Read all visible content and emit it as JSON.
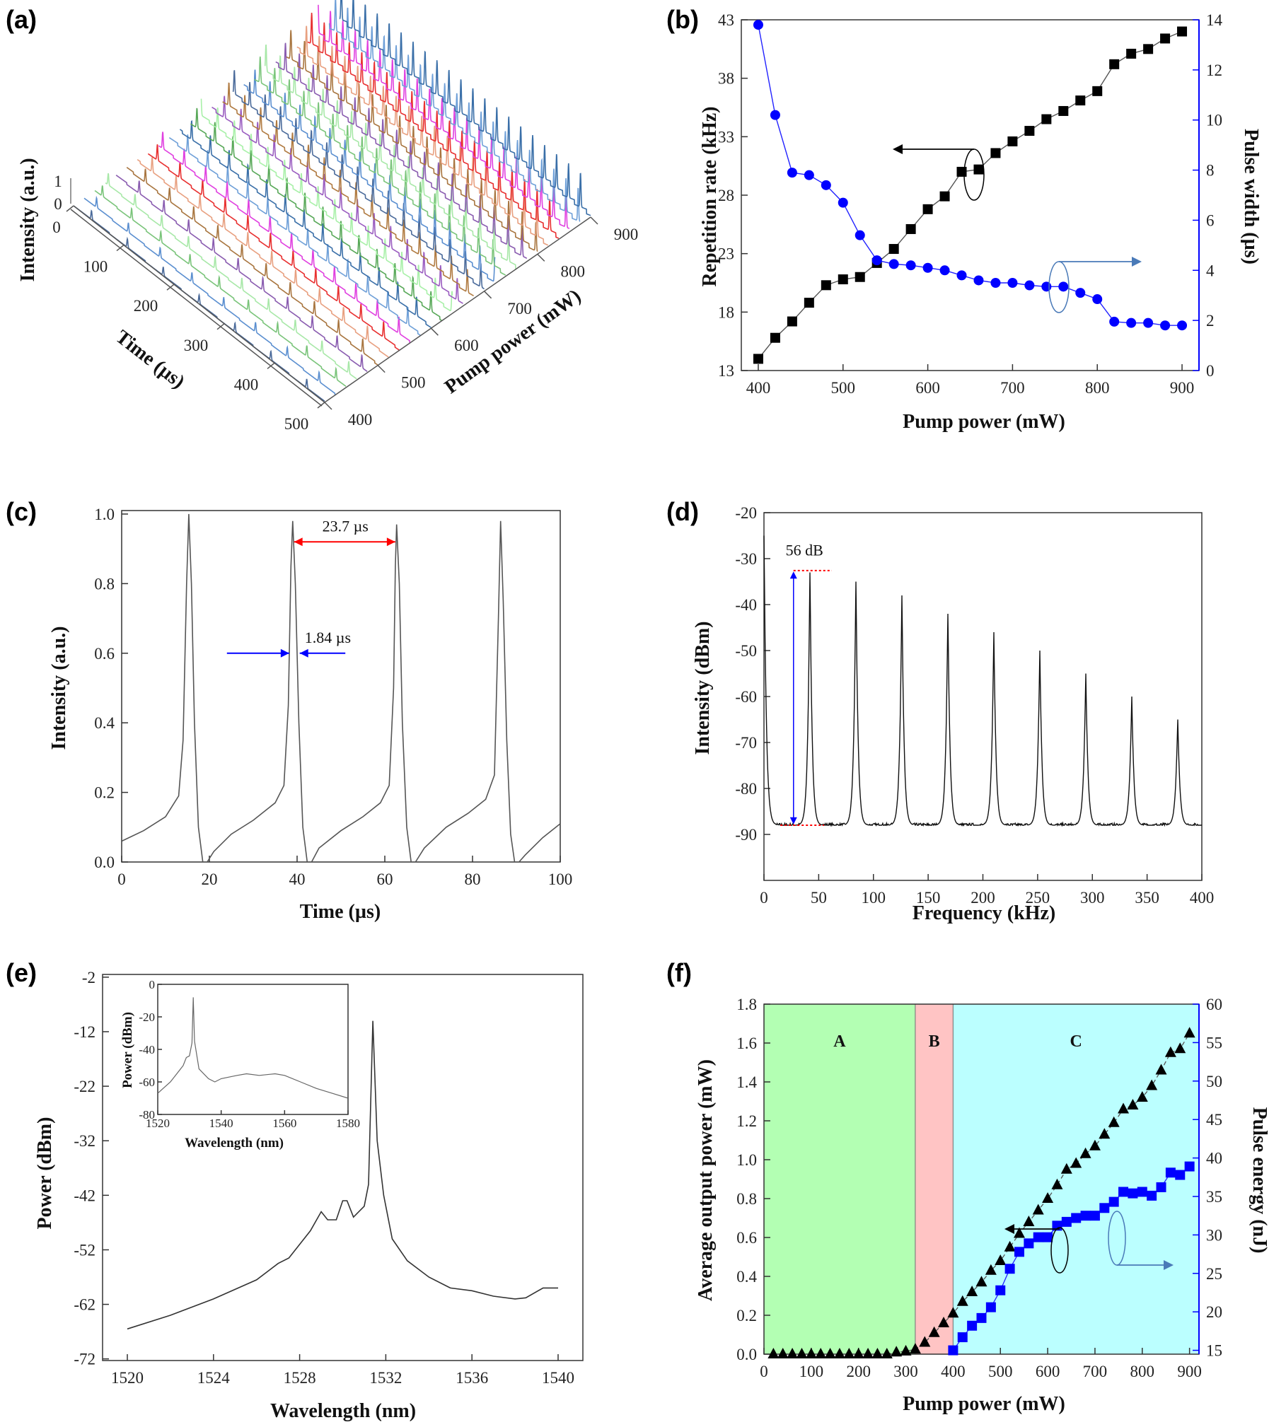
{
  "figure": {
    "panel_labels": [
      "(a)",
      "(b)",
      "(c)",
      "(d)",
      "(e)",
      "(f)"
    ]
  },
  "chart_data": [
    {
      "panel": "(a)",
      "type": "line",
      "style": "3d-waterfall",
      "xlabel": "Time (µs)",
      "ylabel": "Pump power (mW)",
      "zlabel": "Intensity (a.u.)",
      "xlim": [
        0,
        500
      ],
      "ylim": [
        400,
        900
      ],
      "zlim": [
        0,
        1
      ],
      "x_ticks": [
        "0",
        "100",
        "200",
        "300",
        "400",
        "500"
      ],
      "y_ticks": [
        "400",
        "500",
        "600",
        "700",
        "800",
        "900"
      ],
      "z_ticks": [
        "0",
        "1"
      ],
      "pump_powers": [
        400,
        420,
        440,
        460,
        480,
        500,
        520,
        540,
        560,
        580,
        600,
        620,
        640,
        660,
        680,
        700,
        720,
        740,
        760,
        780,
        800,
        820,
        840,
        860,
        880,
        900
      ],
      "colors": [
        "#4a6a9a",
        "#5b8fd0",
        "#7ac47a",
        "#a8e8a8",
        "#8a5cb0",
        "#a8753f",
        "#e8a080",
        "#e83030",
        "#e040e0",
        "#6fa0d8",
        "#3a6fa8",
        "#58a858",
        "#a8f0a8",
        "#9a5cc0",
        "#b07a40"
      ]
    },
    {
      "panel": "(b)",
      "type": "line",
      "xlabel": "Pump power (mW)",
      "ylabel": "Repetition rate (kHz)",
      "y2label": "Pulse width (µs)",
      "xlim": [
        380,
        920
      ],
      "ylim": [
        13,
        43
      ],
      "y2lim": [
        0,
        14
      ],
      "x_ticks": [
        "400",
        "500",
        "600",
        "700",
        "800",
        "900"
      ],
      "y_ticks": [
        "13",
        "18",
        "23",
        "28",
        "33",
        "38",
        "43"
      ],
      "y2_ticks": [
        "0",
        "2",
        "4",
        "6",
        "8",
        "10",
        "12",
        "14"
      ],
      "grid": false,
      "y2_color": "#0000ff",
      "x": [
        400,
        420,
        440,
        460,
        480,
        500,
        520,
        540,
        560,
        580,
        600,
        620,
        640,
        660,
        680,
        700,
        720,
        740,
        760,
        780,
        800,
        820,
        840,
        860,
        880,
        900
      ],
      "series": [
        {
          "axis": "left",
          "marker": "square",
          "color": "#000000",
          "values": [
            14.0,
            15.8,
            17.2,
            18.8,
            20.3,
            20.8,
            21.0,
            22.2,
            23.4,
            25.1,
            26.8,
            27.9,
            30.0,
            30.2,
            31.6,
            32.6,
            33.5,
            34.5,
            35.2,
            36.1,
            36.9,
            39.2,
            40.1,
            40.5,
            41.4,
            42.0
          ]
        },
        {
          "axis": "right",
          "marker": "circle",
          "color": "#0000ff",
          "values": [
            13.8,
            10.2,
            7.9,
            7.8,
            7.4,
            6.7,
            5.4,
            4.4,
            4.25,
            4.2,
            4.1,
            4.0,
            3.8,
            3.6,
            3.5,
            3.5,
            3.4,
            3.35,
            3.35,
            3.1,
            2.85,
            1.95,
            1.9,
            1.9,
            1.8,
            1.8
          ]
        }
      ]
    },
    {
      "panel": "(c)",
      "type": "line",
      "xlabel": "Time (µs)",
      "ylabel": "Intensity (a.u.)",
      "xlim": [
        0,
        100
      ],
      "ylim": [
        0,
        1.01
      ],
      "x_ticks": [
        "0",
        "20",
        "40",
        "60",
        "80",
        "100"
      ],
      "y_ticks": [
        "0.0",
        "0.2",
        "0.4",
        "0.6",
        "0.8",
        "1.0"
      ],
      "annotations": {
        "period": "23.7 µs",
        "pulse_width": "1.84 µs"
      },
      "annotation_colors": {
        "period": "#ff0000",
        "pulse_width": "#0000ff"
      },
      "series": [
        {
          "color": "#555555",
          "points": [
            [
              0,
              0.06
            ],
            [
              5,
              0.09
            ],
            [
              10,
              0.13
            ],
            [
              13,
              0.19
            ],
            [
              14,
              0.35
            ],
            [
              14.8,
              0.8
            ],
            [
              15.3,
              1.0
            ],
            [
              15.9,
              0.8
            ],
            [
              16.6,
              0.4
            ],
            [
              17.5,
              0.1
            ],
            [
              18.5,
              0.0
            ],
            [
              19.5,
              0.0
            ],
            [
              21,
              0.03
            ],
            [
              25,
              0.08
            ],
            [
              30,
              0.12
            ],
            [
              35,
              0.17
            ],
            [
              37,
              0.22
            ],
            [
              38,
              0.45
            ],
            [
              38.6,
              0.85
            ],
            [
              39,
              0.98
            ],
            [
              39.6,
              0.8
            ],
            [
              40.4,
              0.4
            ],
            [
              41.3,
              0.1
            ],
            [
              42.3,
              0.0
            ],
            [
              43.3,
              0.0
            ],
            [
              45,
              0.04
            ],
            [
              50,
              0.09
            ],
            [
              55,
              0.13
            ],
            [
              59,
              0.17
            ],
            [
              61,
              0.22
            ],
            [
              62,
              0.5
            ],
            [
              62.4,
              0.85
            ],
            [
              62.7,
              0.97
            ],
            [
              63.3,
              0.8
            ],
            [
              64,
              0.4
            ],
            [
              65,
              0.1
            ],
            [
              66,
              0.0
            ],
            [
              67,
              0.0
            ],
            [
              69,
              0.04
            ],
            [
              74,
              0.1
            ],
            [
              79,
              0.14
            ],
            [
              83,
              0.18
            ],
            [
              85,
              0.25
            ],
            [
              85.9,
              0.7
            ],
            [
              86.4,
              0.98
            ],
            [
              87,
              0.75
            ],
            [
              87.8,
              0.35
            ],
            [
              88.7,
              0.08
            ],
            [
              89.6,
              0.0
            ],
            [
              90.6,
              0.0
            ],
            [
              92,
              0.02
            ],
            [
              96,
              0.07
            ],
            [
              100,
              0.11
            ]
          ]
        }
      ]
    },
    {
      "panel": "(d)",
      "type": "line",
      "xlabel": "Frequency (kHz)",
      "ylabel": "Intensity (dBm)",
      "xlim": [
        0,
        400
      ],
      "ylim": [
        -100,
        -20
      ],
      "x_ticks": [
        "0",
        "50",
        "100",
        "150",
        "200",
        "250",
        "300",
        "350",
        "400"
      ],
      "y_ticks": [
        "-20",
        "-30",
        "-40",
        "-50",
        "-60",
        "-70",
        "-80",
        "-90"
      ],
      "annotations": {
        "snr": "56 dB"
      },
      "noise_floor_dbm": -88,
      "series": [
        {
          "color": "#111111",
          "peaks": [
            [
              0,
              -25
            ],
            [
              42,
              -33
            ],
            [
              84,
              -35
            ],
            [
              126,
              -38
            ],
            [
              168,
              -42
            ],
            [
              210,
              -46
            ],
            [
              252,
              -50
            ],
            [
              294,
              -55
            ],
            [
              336,
              -60
            ],
            [
              378,
              -65
            ]
          ]
        }
      ]
    },
    {
      "panel": "(e)",
      "type": "line",
      "xlabel": "Wavelength (nm)",
      "ylabel": "Power (dBm)",
      "xlim": [
        1518.85,
        1541.15
      ],
      "ylim": [
        -72.3,
        -1.5
      ],
      "x_ticks": [
        "1520",
        "1524",
        "1528",
        "1532",
        "1536",
        "1540"
      ],
      "y_ticks": [
        "-2",
        "-12",
        "-22",
        "-32",
        "-42",
        "-52",
        "-62",
        "-72"
      ],
      "series": [
        {
          "color": "#333333",
          "points": [
            [
              1520,
              -66.5
            ],
            [
              1522,
              -64
            ],
            [
              1524,
              -61
            ],
            [
              1526,
              -57.5
            ],
            [
              1527,
              -54.5
            ],
            [
              1527.5,
              -53.5
            ],
            [
              1528,
              -51
            ],
            [
              1528.5,
              -48.5
            ],
            [
              1529,
              -45
            ],
            [
              1529.3,
              -46.5
            ],
            [
              1529.7,
              -46.5
            ],
            [
              1530,
              -43
            ],
            [
              1530.2,
              -43
            ],
            [
              1530.5,
              -46
            ],
            [
              1531,
              -44
            ],
            [
              1531.2,
              -40
            ],
            [
              1531.4,
              -10
            ],
            [
              1531.6,
              -32
            ],
            [
              1531.9,
              -42
            ],
            [
              1532.3,
              -50
            ],
            [
              1533,
              -54
            ],
            [
              1534,
              -57
            ],
            [
              1535,
              -59
            ],
            [
              1536,
              -59.5
            ],
            [
              1537,
              -60.5
            ],
            [
              1538,
              -61
            ],
            [
              1538.5,
              -60.8
            ],
            [
              1539.3,
              -59
            ],
            [
              1540,
              -59
            ]
          ]
        }
      ],
      "inset": {
        "xlabel": "Wavelength (nm)",
        "ylabel": "Power (dBm)",
        "xlim": [
          1520,
          1580
        ],
        "ylim": [
          -80,
          0
        ],
        "x_ticks": [
          "1520",
          "1540",
          "1560",
          "1580"
        ],
        "y_ticks": [
          "0",
          "-20",
          "-40",
          "-60",
          "-80"
        ],
        "points": [
          [
            1520,
            -67
          ],
          [
            1524,
            -60
          ],
          [
            1528,
            -50
          ],
          [
            1529,
            -45
          ],
          [
            1530,
            -44
          ],
          [
            1530.8,
            -36
          ],
          [
            1531.2,
            -8
          ],
          [
            1531.6,
            -35
          ],
          [
            1533,
            -52
          ],
          [
            1536,
            -58
          ],
          [
            1538,
            -60
          ],
          [
            1540,
            -58
          ],
          [
            1545,
            -56
          ],
          [
            1548,
            -55
          ],
          [
            1552,
            -56
          ],
          [
            1557,
            -55
          ],
          [
            1560,
            -56
          ],
          [
            1565,
            -60
          ],
          [
            1570,
            -64
          ],
          [
            1575,
            -67
          ],
          [
            1580,
            -70
          ]
        ]
      }
    },
    {
      "panel": "(f)",
      "type": "line",
      "xlabel": "Pump power (mW)",
      "ylabel": "Average output power (mW)",
      "y2label": "Pulse energy (nJ)",
      "xlim": [
        0,
        920
      ],
      "ylim": [
        0,
        1.8
      ],
      "y2lim": [
        14.5,
        60
      ],
      "x_ticks": [
        "0",
        "100",
        "200",
        "300",
        "400",
        "500",
        "600",
        "700",
        "800",
        "900"
      ],
      "y_ticks": [
        "0.0",
        "0.2",
        "0.4",
        "0.6",
        "0.8",
        "1.0",
        "1.2",
        "1.4",
        "1.6",
        "1.8"
      ],
      "y2_ticks": [
        "15",
        "20",
        "25",
        "30",
        "35",
        "40",
        "45",
        "50",
        "55",
        "60"
      ],
      "y2_color": "#0000ff",
      "regions": [
        {
          "label": "A",
          "from": 0,
          "to": 320,
          "color": "#b3ffb3"
        },
        {
          "label": "B",
          "from": 320,
          "to": 400,
          "color": "#ffc4c4"
        },
        {
          "label": "C",
          "from": 400,
          "to": 920,
          "color": "#bbffff"
        }
      ],
      "series": [
        {
          "axis": "left",
          "marker": "triangle",
          "color": "#000000",
          "x": [
            20,
            40,
            60,
            80,
            100,
            120,
            140,
            160,
            180,
            200,
            220,
            240,
            260,
            280,
            300,
            320,
            340,
            360,
            380,
            400,
            420,
            440,
            460,
            480,
            500,
            520,
            540,
            560,
            580,
            600,
            620,
            640,
            660,
            680,
            700,
            720,
            740,
            760,
            780,
            800,
            820,
            840,
            860,
            880,
            900
          ],
          "values": [
            0,
            0,
            0,
            0,
            0,
            0,
            0,
            0,
            0,
            0,
            0,
            0,
            0,
            0.01,
            0.015,
            0.025,
            0.06,
            0.11,
            0.16,
            0.21,
            0.27,
            0.32,
            0.37,
            0.43,
            0.48,
            0.55,
            0.62,
            0.68,
            0.74,
            0.8,
            0.87,
            0.95,
            0.98,
            1.03,
            1.07,
            1.13,
            1.19,
            1.26,
            1.28,
            1.32,
            1.38,
            1.46,
            1.55,
            1.57,
            1.65
          ]
        },
        {
          "axis": "right",
          "marker": "square",
          "color": "#0000ff",
          "x": [
            400,
            420,
            440,
            460,
            480,
            500,
            520,
            540,
            560,
            580,
            600,
            620,
            640,
            660,
            680,
            700,
            720,
            740,
            760,
            780,
            800,
            820,
            840,
            860,
            880,
            900
          ],
          "values": [
            15,
            16.7,
            18.2,
            19.2,
            20.6,
            22.8,
            25.6,
            27.8,
            28.9,
            29.7,
            29.7,
            31.2,
            31.7,
            32.2,
            32.5,
            32.5,
            33.5,
            34.3,
            35.6,
            35.4,
            35.6,
            35.1,
            36.2,
            38.1,
            37.8,
            38.9
          ]
        }
      ]
    }
  ]
}
